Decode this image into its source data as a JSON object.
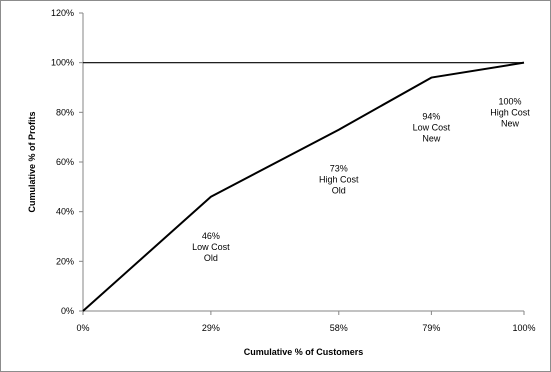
{
  "chart_data": {
    "type": "line",
    "xlabel": "Cumulative % of Customers",
    "ylabel": "Cumulative % of Profits",
    "x_categories": [
      "0%",
      "29%",
      "58%",
      "79%",
      "100%"
    ],
    "x": [
      0,
      29,
      58,
      79,
      100
    ],
    "series": [
      {
        "values": [
          0,
          46,
          73,
          94,
          100
        ],
        "color": "#000000"
      },
      {
        "values": [
          100,
          100,
          100,
          100,
          100
        ],
        "color": "#000000"
      }
    ],
    "ylim": [
      0,
      120
    ],
    "y_ticks": [
      0,
      20,
      40,
      60,
      80,
      100,
      120
    ],
    "y_tick_labels": [
      "0%",
      "20%",
      "40%",
      "60%",
      "80%",
      "100%",
      "120%"
    ],
    "annotations": [
      {
        "x": 29,
        "lines": [
          "46%",
          "Low Cost",
          "Old"
        ]
      },
      {
        "x": 58,
        "lines": [
          "73%",
          "High Cost",
          "Old"
        ]
      },
      {
        "x": 79,
        "lines": [
          "94%",
          "Low Cost",
          "New"
        ]
      },
      {
        "x": 100,
        "lines": [
          "100%",
          "High Cost",
          "New"
        ]
      }
    ],
    "grid": false,
    "legend": "none"
  }
}
